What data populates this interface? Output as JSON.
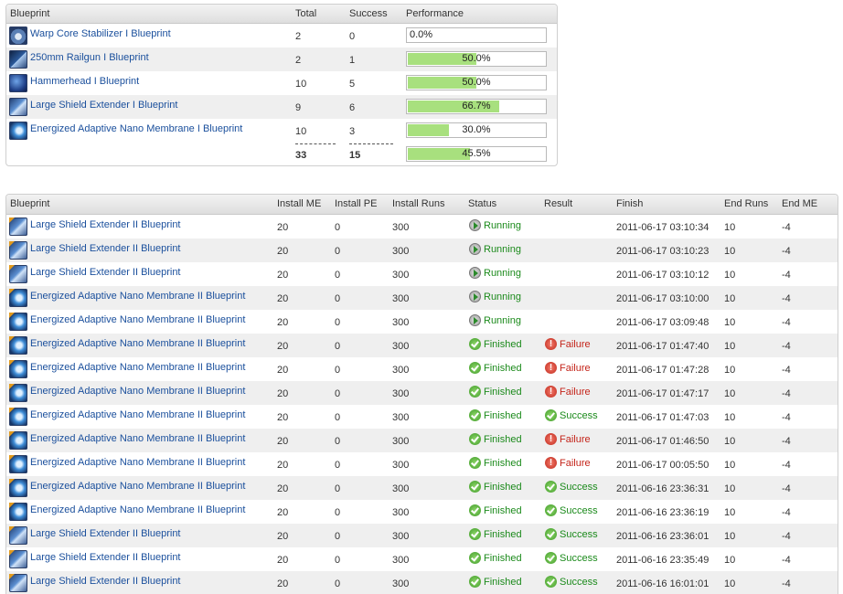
{
  "summary": {
    "headers": {
      "blueprint": "Blueprint",
      "total": "Total",
      "success": "Success",
      "performance": "Performance"
    },
    "rows": [
      {
        "icon": "warp-core-blueprint-icon",
        "name": "Warp Core Stabilizer I Blueprint",
        "total": "2",
        "success": "0",
        "perf_label": "0.0%",
        "perf": 0.0
      },
      {
        "icon": "railgun-blueprint-icon",
        "name": "250mm Railgun I Blueprint",
        "total": "2",
        "success": "1",
        "perf_label": "50.0%",
        "perf": 0.5
      },
      {
        "icon": "hammerhead-blueprint-icon",
        "name": "Hammerhead I Blueprint",
        "total": "10",
        "success": "5",
        "perf_label": "50.0%",
        "perf": 0.5
      },
      {
        "icon": "shield-extender-blueprint-icon",
        "name": "Large Shield Extender I Blueprint",
        "total": "9",
        "success": "6",
        "perf_label": "66.7%",
        "perf": 0.667
      },
      {
        "icon": "nano-membrane-blueprint-icon",
        "name": "Energized Adaptive Nano Membrane I Blueprint",
        "total": "10",
        "success": "3",
        "perf_label": "30.0%",
        "perf": 0.3
      }
    ],
    "totals": {
      "total": "33",
      "success": "15",
      "perf_label": "45.5%",
      "perf": 0.455
    }
  },
  "jobs": {
    "headers": {
      "blueprint": "Blueprint",
      "install_me": "Install ME",
      "install_pe": "Install PE",
      "install_runs": "Install Runs",
      "status": "Status",
      "result": "Result",
      "finish": "Finish",
      "end_runs": "End Runs",
      "end_me": "End ME"
    },
    "rows": [
      {
        "kind": "shield",
        "name": "Large Shield Extender II Blueprint",
        "me": "20",
        "pe": "0",
        "runs": "300",
        "status": "Running",
        "result": "",
        "finish": "2011-06-17 03:10:34",
        "end_runs": "10",
        "end_me": "-4"
      },
      {
        "kind": "shield",
        "name": "Large Shield Extender II Blueprint",
        "me": "20",
        "pe": "0",
        "runs": "300",
        "status": "Running",
        "result": "",
        "finish": "2011-06-17 03:10:23",
        "end_runs": "10",
        "end_me": "-4"
      },
      {
        "kind": "shield",
        "name": "Large Shield Extender II Blueprint",
        "me": "20",
        "pe": "0",
        "runs": "300",
        "status": "Running",
        "result": "",
        "finish": "2011-06-17 03:10:12",
        "end_runs": "10",
        "end_me": "-4"
      },
      {
        "kind": "nano",
        "name": "Energized Adaptive Nano Membrane II Blueprint",
        "me": "20",
        "pe": "0",
        "runs": "300",
        "status": "Running",
        "result": "",
        "finish": "2011-06-17 03:10:00",
        "end_runs": "10",
        "end_me": "-4"
      },
      {
        "kind": "nano",
        "name": "Energized Adaptive Nano Membrane II Blueprint",
        "me": "20",
        "pe": "0",
        "runs": "300",
        "status": "Running",
        "result": "",
        "finish": "2011-06-17 03:09:48",
        "end_runs": "10",
        "end_me": "-4"
      },
      {
        "kind": "nano",
        "name": "Energized Adaptive Nano Membrane II Blueprint",
        "me": "20",
        "pe": "0",
        "runs": "300",
        "status": "Finished",
        "result": "Failure",
        "finish": "2011-06-17 01:47:40",
        "end_runs": "10",
        "end_me": "-4"
      },
      {
        "kind": "nano",
        "name": "Energized Adaptive Nano Membrane II Blueprint",
        "me": "20",
        "pe": "0",
        "runs": "300",
        "status": "Finished",
        "result": "Failure",
        "finish": "2011-06-17 01:47:28",
        "end_runs": "10",
        "end_me": "-4"
      },
      {
        "kind": "nano",
        "name": "Energized Adaptive Nano Membrane II Blueprint",
        "me": "20",
        "pe": "0",
        "runs": "300",
        "status": "Finished",
        "result": "Failure",
        "finish": "2011-06-17 01:47:17",
        "end_runs": "10",
        "end_me": "-4"
      },
      {
        "kind": "nano",
        "name": "Energized Adaptive Nano Membrane II Blueprint",
        "me": "20",
        "pe": "0",
        "runs": "300",
        "status": "Finished",
        "result": "Success",
        "finish": "2011-06-17 01:47:03",
        "end_runs": "10",
        "end_me": "-4"
      },
      {
        "kind": "nano",
        "name": "Energized Adaptive Nano Membrane II Blueprint",
        "me": "20",
        "pe": "0",
        "runs": "300",
        "status": "Finished",
        "result": "Failure",
        "finish": "2011-06-17 01:46:50",
        "end_runs": "10",
        "end_me": "-4"
      },
      {
        "kind": "nano",
        "name": "Energized Adaptive Nano Membrane II Blueprint",
        "me": "20",
        "pe": "0",
        "runs": "300",
        "status": "Finished",
        "result": "Failure",
        "finish": "2011-06-17 00:05:50",
        "end_runs": "10",
        "end_me": "-4"
      },
      {
        "kind": "nano",
        "name": "Energized Adaptive Nano Membrane II Blueprint",
        "me": "20",
        "pe": "0",
        "runs": "300",
        "status": "Finished",
        "result": "Success",
        "finish": "2011-06-16 23:36:31",
        "end_runs": "10",
        "end_me": "-4"
      },
      {
        "kind": "nano",
        "name": "Energized Adaptive Nano Membrane II Blueprint",
        "me": "20",
        "pe": "0",
        "runs": "300",
        "status": "Finished",
        "result": "Success",
        "finish": "2011-06-16 23:36:19",
        "end_runs": "10",
        "end_me": "-4"
      },
      {
        "kind": "shield",
        "name": "Large Shield Extender II Blueprint",
        "me": "20",
        "pe": "0",
        "runs": "300",
        "status": "Finished",
        "result": "Success",
        "finish": "2011-06-16 23:36:01",
        "end_runs": "10",
        "end_me": "-4"
      },
      {
        "kind": "shield",
        "name": "Large Shield Extender II Blueprint",
        "me": "20",
        "pe": "0",
        "runs": "300",
        "status": "Finished",
        "result": "Success",
        "finish": "2011-06-16 23:35:49",
        "end_runs": "10",
        "end_me": "-4"
      },
      {
        "kind": "shield",
        "name": "Large Shield Extender II Blueprint",
        "me": "20",
        "pe": "0",
        "runs": "300",
        "status": "Finished",
        "result": "Success",
        "finish": "2011-06-16 16:01:01",
        "end_runs": "10",
        "end_me": "-4"
      }
    ]
  },
  "colors": {
    "link": "#1a4f9c",
    "bar_fill": "#a8e07e",
    "success": "#1b8a1b",
    "failure": "#c4241a",
    "row_alt": "#efefef"
  }
}
